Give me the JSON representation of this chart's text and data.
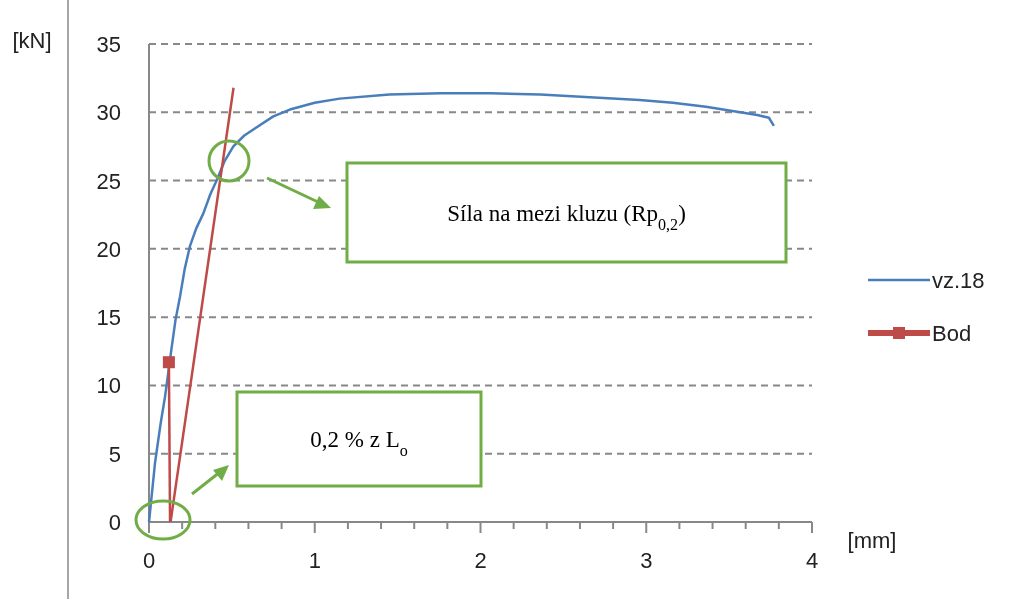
{
  "chart_data": {
    "type": "line",
    "xlabel": "[mm]",
    "ylabel": "[kN]",
    "xlim": [
      0,
      4
    ],
    "ylim": [
      0,
      35
    ],
    "xticks": [
      0,
      {
        "value": 0.2,
        "label": null
      },
      {
        "value": 0.4,
        "label": null
      },
      {
        "value": 0.6,
        "label": null
      },
      {
        "value": 0.8,
        "label": null
      },
      1,
      {
        "value": 1.2,
        "label": null
      },
      {
        "value": 1.4,
        "label": null
      },
      {
        "value": 1.6,
        "label": null
      },
      {
        "value": 1.8,
        "label": null
      },
      2,
      {
        "value": 2.2,
        "label": null
      },
      {
        "value": 2.4,
        "label": null
      },
      {
        "value": 2.6,
        "label": null
      },
      {
        "value": 2.8,
        "label": null
      },
      3,
      {
        "value": 3.2,
        "label": null
      },
      {
        "value": 3.4,
        "label": null
      },
      {
        "value": 3.6,
        "label": null
      },
      {
        "value": 3.8,
        "label": null
      },
      4
    ],
    "yticks": [
      0,
      5,
      10,
      15,
      20,
      25,
      30,
      35
    ],
    "grid": "y",
    "legend": "right",
    "series": [
      {
        "name": "vz.18",
        "color": "#4a7ebb",
        "marker": "none",
        "x": [
          0,
          0.036,
          0.07,
          0.097,
          0.137,
          0.16,
          0.187,
          0.215,
          0.247,
          0.285,
          0.328,
          0.37,
          0.408,
          0.455,
          0.509,
          0.575,
          0.65,
          0.75,
          0.85,
          1.0,
          1.15,
          1.45,
          1.76,
          2.06,
          2.36,
          2.66,
          2.96,
          3.16,
          3.36,
          3.52,
          3.67,
          3.74,
          3.77
        ],
        "values": [
          0,
          4.3,
          7.2,
          9.2,
          12.8,
          14.8,
          16.5,
          18.5,
          20.2,
          21.5,
          22.6,
          24.0,
          25.0,
          26.4,
          27.5,
          28.3,
          28.9,
          29.7,
          30.2,
          30.7,
          31.0,
          31.3,
          31.4,
          31.4,
          31.3,
          31.1,
          30.9,
          30.7,
          30.4,
          30.1,
          29.8,
          29.6,
          29.0
        ]
      },
      {
        "name": "Bod",
        "color": "#be4b48",
        "marker": "square",
        "x": [
          0.12,
          0.127
        ],
        "values": [
          11.7,
          0
        ]
      },
      {
        "color": "#be4b48",
        "marker": "none",
        "x": [
          0.13,
          0.51
        ],
        "values": [
          0,
          31.8
        ]
      }
    ],
    "annotations": [
      "Síla na mezi kluzu (Rp$_{0,2}$)",
      "0,2 % z L$_{o}$"
    ]
  }
}
